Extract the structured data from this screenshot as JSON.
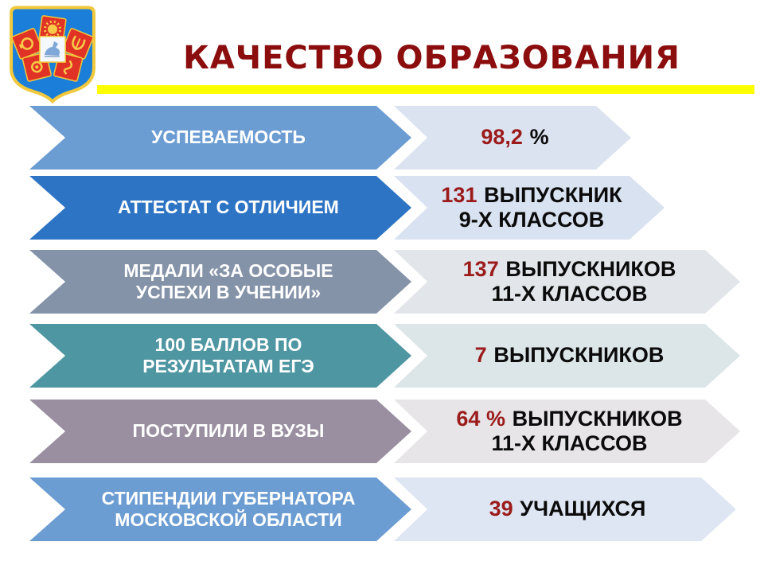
{
  "slide": {
    "title": "КАЧЕСТВО ОБРАЗОВАНИЯ",
    "title_color": "#8B0D0D",
    "underline_color": "#FFFF00",
    "background_color": "#FFFFFF",
    "accent_number_color": "#9B1B1B"
  },
  "emblem": {
    "description": "coat-of-arms",
    "shield_color": "#1B7ED8",
    "border_color": "#F2C83C",
    "square_color": "#E13226",
    "ornament_color": "#F7C948"
  },
  "rows": [
    {
      "label_line1": "УСПЕВАЕМОСТЬ",
      "label_line2": "",
      "value_number": "98,2",
      "value_text": "%",
      "value_line2": "",
      "arrow_color": "#6B9CD2",
      "value_bg": "#DCE3F0",
      "value_width": 298
    },
    {
      "label_line1": "АТТЕСТАТ С ОТЛИЧИЕМ",
      "label_line2": "",
      "value_number": "131",
      "value_text": "ВЫПУСКНИК",
      "value_line2": "9-Х КЛАССОВ",
      "arrow_color": "#2E74C4",
      "value_bg": "#D9E2F1",
      "value_width": 340
    },
    {
      "label_line1": "МЕДАЛИ «ЗА ОСОБЫЕ",
      "label_line2": "УСПЕХИ В УЧЕНИИ»",
      "value_number": "137",
      "value_text": "ВЫПУСКНИКОВ",
      "value_line2": "11-Х КЛАССОВ",
      "arrow_color": "#8593A9",
      "value_bg": "#E2E5EA",
      "value_width": 435
    },
    {
      "label_line1": "100 БАЛЛОВ ПО",
      "label_line2": "РЕЗУЛЬТАТАМ ЕГЭ",
      "value_number": "7",
      "value_text": "ВЫПУСКНИКОВ",
      "value_line2": "",
      "arrow_color": "#4F96A3",
      "value_bg": "#DCE5E8",
      "value_width": 435
    },
    {
      "label_line1": "ПОСТУПИЛИ В ВУЗЫ",
      "label_line2": "",
      "value_number": "64 %",
      "value_text": "ВЫПУСКНИКОВ",
      "value_line2": "11-Х КЛАССОВ",
      "arrow_color": "#9A8FA0",
      "value_bg": "#E7E5E8",
      "value_width": 435
    },
    {
      "label_line1": "СТИПЕНДИИ ГУБЕРНАТОРА",
      "label_line2": "МОСКОВСКОЙ ОБЛАСТИ",
      "value_number": "39",
      "value_text": "УЧАЩИХСЯ",
      "value_line2": "",
      "arrow_color": "#6B9CD2",
      "value_bg": "#DEE6F3",
      "value_width": 430
    }
  ]
}
